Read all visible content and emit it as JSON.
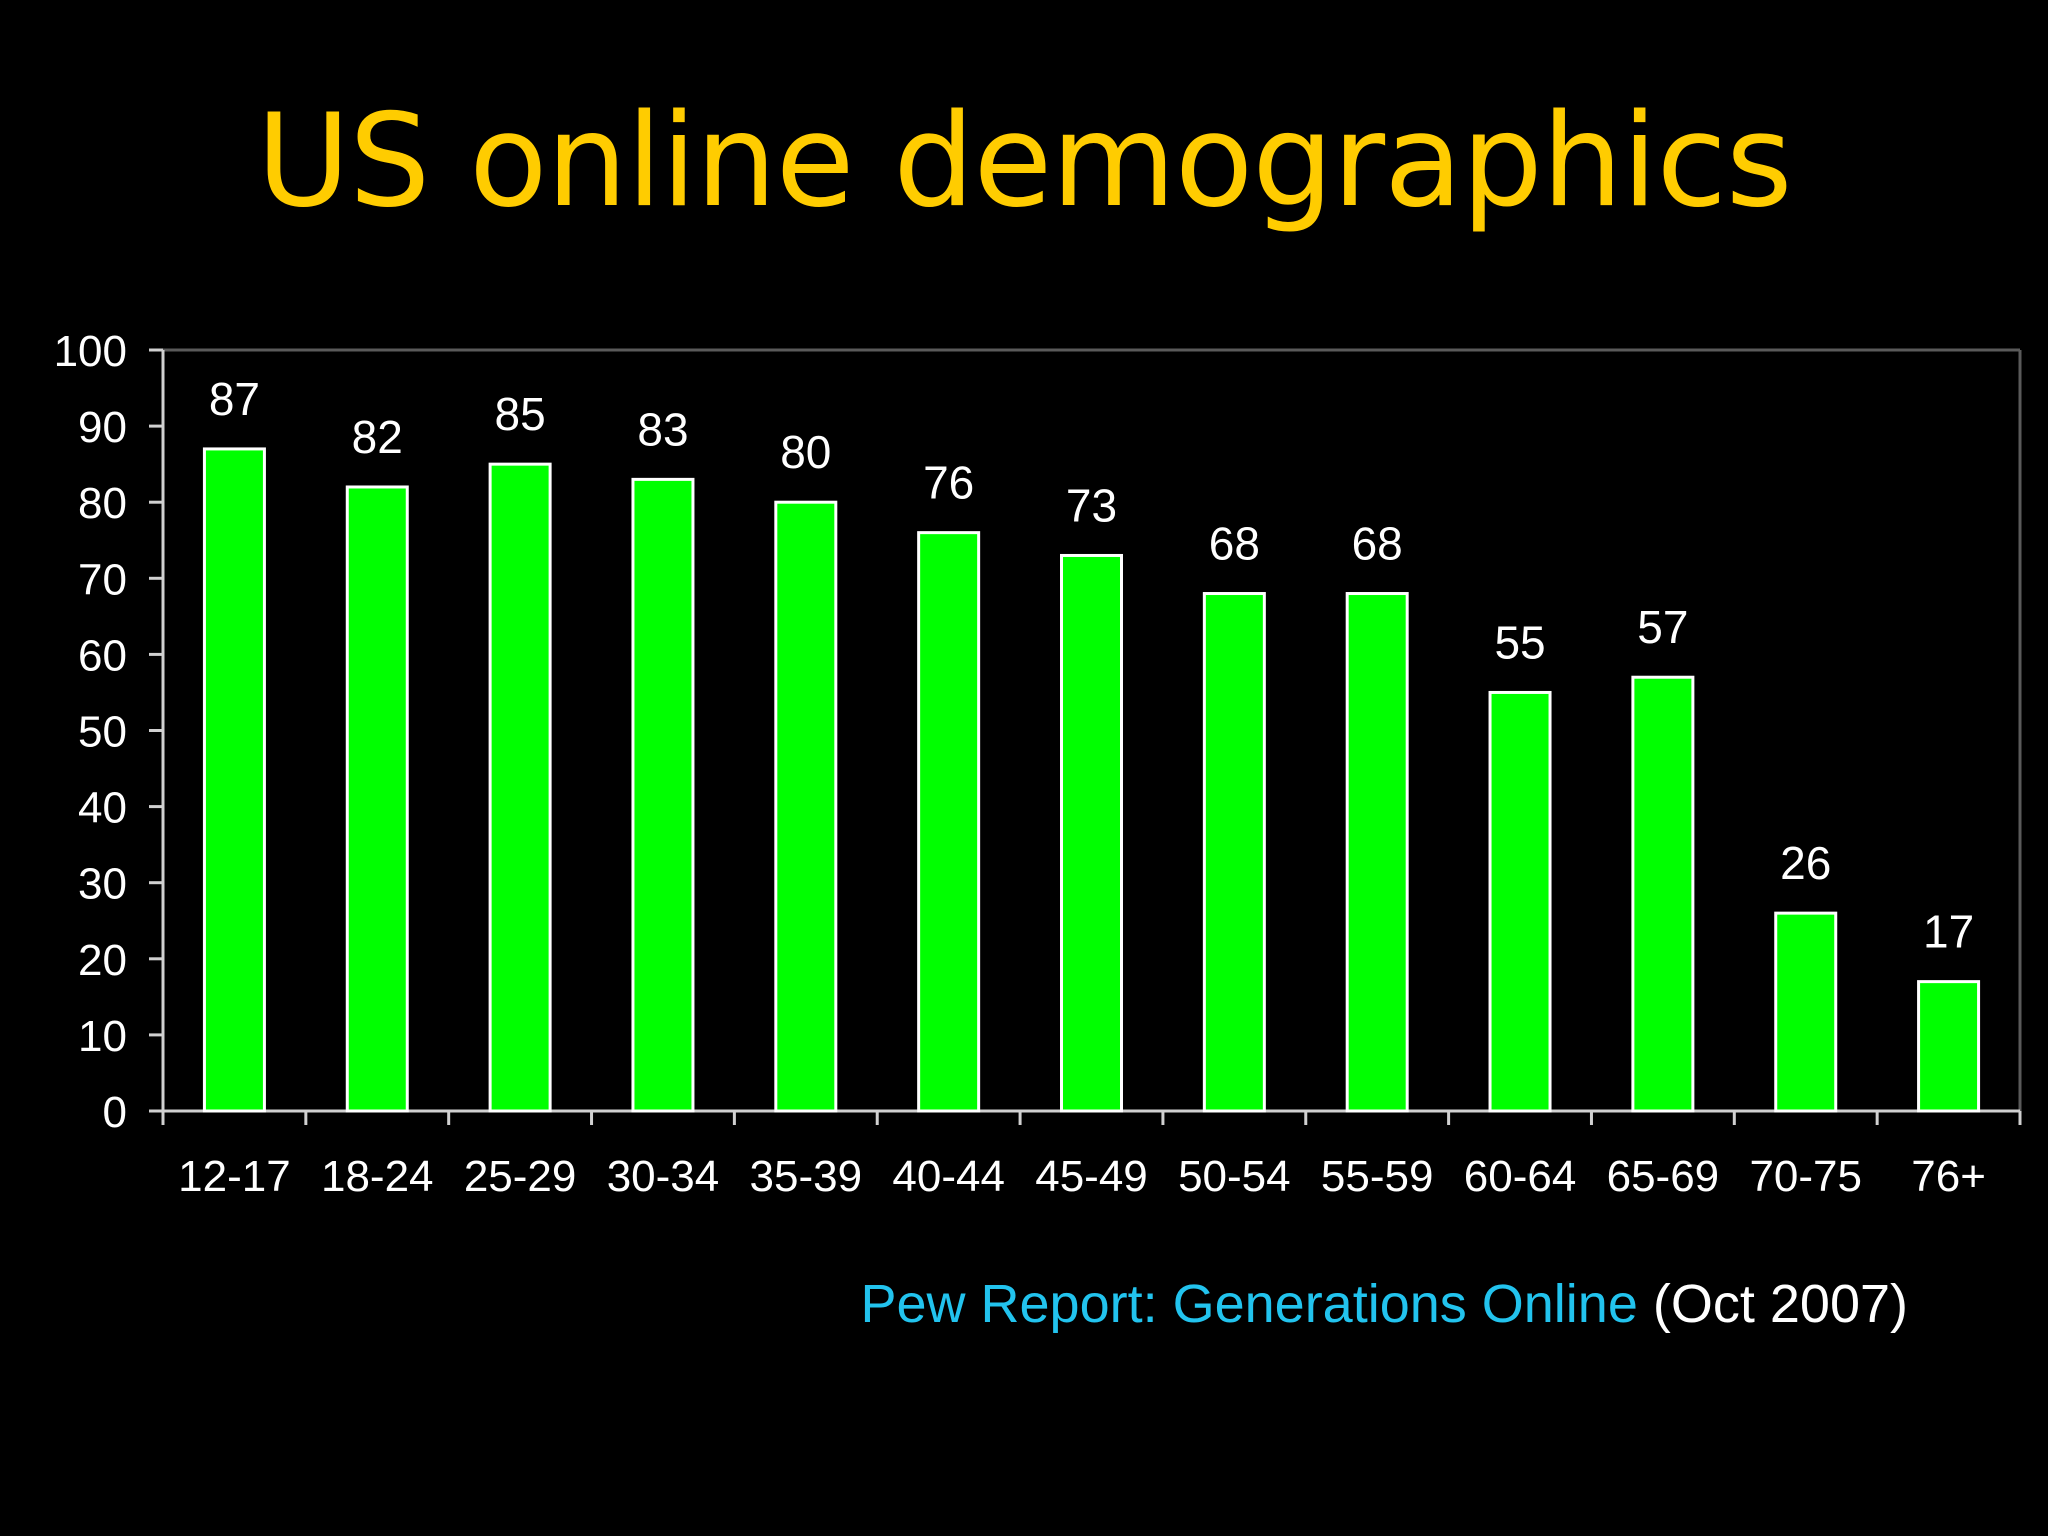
{
  "slide": {
    "title": "US online demographics"
  },
  "colors": {
    "background": "#000000",
    "title": "#ffcc00",
    "bar_fill": "#00ff00",
    "bar_outline": "#ffffff",
    "axis": "#d0d0d0",
    "text": "#ffffff",
    "source_link": "#22c3ee"
  },
  "chart_data": {
    "type": "bar",
    "categories": [
      "12-17",
      "18-24",
      "25-29",
      "30-34",
      "35-39",
      "40-44",
      "45-49",
      "50-54",
      "55-59",
      "60-64",
      "65-69",
      "70-75",
      "76+"
    ],
    "values": [
      87,
      82,
      85,
      83,
      80,
      76,
      73,
      68,
      68,
      55,
      57,
      26,
      17
    ],
    "data_labels": [
      "87",
      "82",
      "85",
      "83",
      "80",
      "76",
      "73",
      "68",
      "68",
      "55",
      "57",
      "26",
      "17"
    ],
    "y_ticks": [
      "0",
      "10",
      "20",
      "30",
      "40",
      "50",
      "60",
      "70",
      "80",
      "90",
      "100"
    ],
    "ylim": [
      0,
      100
    ],
    "grid": false,
    "legend": "none"
  },
  "source": {
    "link_text": "Pew Report: Generations Online",
    "date_text": "(Oct 2007)"
  }
}
